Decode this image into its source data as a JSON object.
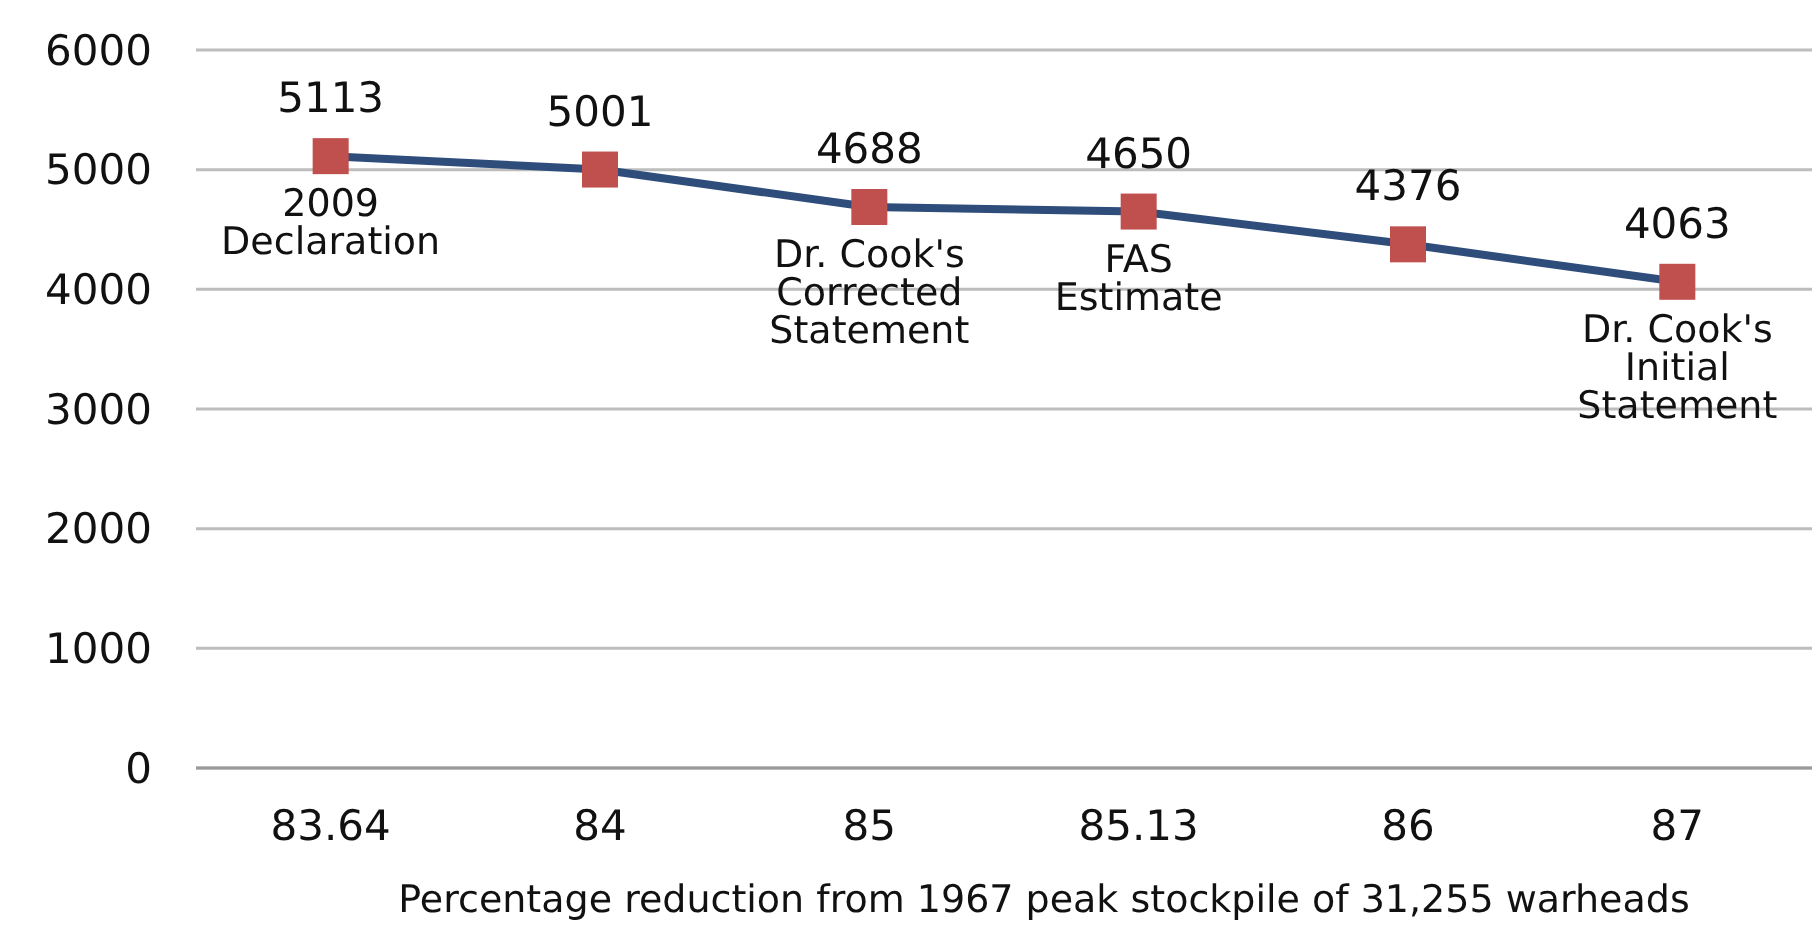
{
  "chart_data": {
    "type": "line",
    "categories": [
      "83.64",
      "84",
      "85",
      "85.13",
      "86",
      "87"
    ],
    "series": [
      {
        "color": "#2e4d7b",
        "colors": [
          "#c0504d",
          "#c0504d",
          "#c0504d",
          "#c0504d",
          "#c0504d",
          "#c0504d"
        ],
        "values": [
          5113,
          5001,
          4688,
          4650,
          4376,
          4063
        ]
      }
    ],
    "marker": "square",
    "line_style": "solid",
    "data_labels": true,
    "grid": "y",
    "ylim": [
      0,
      6000
    ],
    "yticks": [
      0,
      1000,
      2000,
      3000,
      4000,
      5000,
      6000
    ],
    "xlabel": "Percentage reduction from 1967 peak stockpile of 31,255 warheads",
    "annotations": [
      {
        "text": "2009\nDeclaration",
        "x": "83.64",
        "y": 5113
      },
      {
        "text": "Dr. Cook's\nCorrected\nStatement",
        "x": "85",
        "y": 4688
      },
      {
        "text": "FAS\nEstimate",
        "x": "85.13",
        "y": 4650
      },
      {
        "text": "Dr. Cook's\nInitial\nStatement",
        "x": "87",
        "y": 4063
      }
    ]
  }
}
